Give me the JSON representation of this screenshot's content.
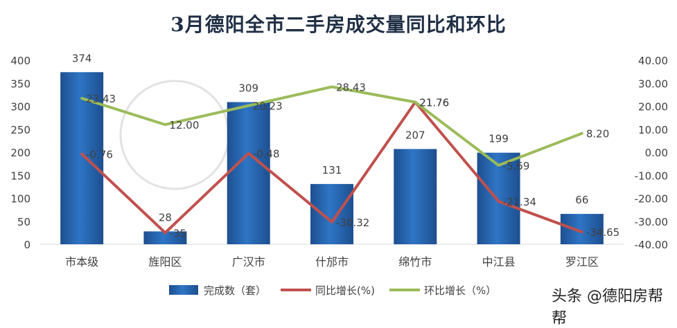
{
  "title": "3月德阳全市二手房成交量同比和环比",
  "watermark": "头条 @德阳房帮帮",
  "colors": {
    "bar": "#2e75c5",
    "bar_dark": "#1e4f8f",
    "yoy_line": "#c0504d",
    "mom_line": "#9bbb59",
    "axis_text": "#404040",
    "grid": "#d9d9d9"
  },
  "chart_data": {
    "type": "bar",
    "categories": [
      "市本级",
      "旌阳区",
      "广汉市",
      "什邡市",
      "绵竹市",
      "中江县",
      "罗江区"
    ],
    "y_left": {
      "ticks": [
        "0",
        "50",
        "100",
        "150",
        "200",
        "250",
        "300",
        "350",
        "400"
      ],
      "lim": [
        0,
        400
      ]
    },
    "y_right": {
      "ticks": [
        "-40.00",
        "-30.00",
        "-20.00",
        "-10.00",
        "0.00",
        "10.00",
        "20.00",
        "30.00",
        "40.00"
      ],
      "lim": [
        -40,
        40
      ]
    },
    "series": [
      {
        "name": "完成数（套）",
        "kind": "bar",
        "axis": "left",
        "values": [
          374,
          28,
          309,
          131,
          207,
          199,
          66
        ],
        "labels": [
          "374",
          "28",
          "309",
          "131",
          "207",
          "199",
          "66"
        ]
      },
      {
        "name": "同比增长(%)",
        "kind": "line",
        "axis": "right",
        "values": [
          -0.76,
          -35,
          -0.48,
          -30.32,
          21.76,
          -21.34,
          -34.65
        ],
        "labels": [
          "-0.76",
          "-35",
          "-0.48",
          "-30.32",
          "21.76",
          "-21.34",
          "-34.65"
        ]
      },
      {
        "name": "环比增长（%）",
        "kind": "line",
        "axis": "right",
        "values": [
          23.43,
          12.0,
          20.23,
          28.43,
          21.76,
          -5.69,
          8.2
        ],
        "labels": [
          "23.43",
          "12.00",
          "20.23",
          "28.43",
          "21.76",
          "-5.69",
          "8.20"
        ]
      }
    ],
    "legend_position": "bottom-center",
    "grid": false
  }
}
